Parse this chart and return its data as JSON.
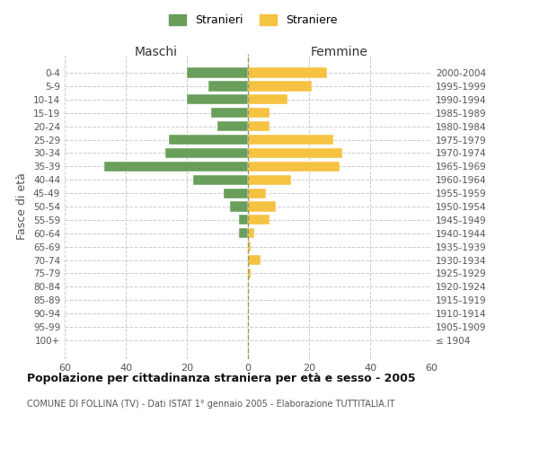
{
  "age_groups": [
    "100+",
    "95-99",
    "90-94",
    "85-89",
    "80-84",
    "75-79",
    "70-74",
    "65-69",
    "60-64",
    "55-59",
    "50-54",
    "45-49",
    "40-44",
    "35-39",
    "30-34",
    "25-29",
    "20-24",
    "15-19",
    "10-14",
    "5-9",
    "0-4"
  ],
  "birth_years": [
    "≤ 1904",
    "1905-1909",
    "1910-1914",
    "1915-1919",
    "1920-1924",
    "1925-1929",
    "1930-1934",
    "1935-1939",
    "1940-1944",
    "1945-1949",
    "1950-1954",
    "1955-1959",
    "1960-1964",
    "1965-1969",
    "1970-1974",
    "1975-1979",
    "1980-1984",
    "1985-1989",
    "1990-1994",
    "1995-1999",
    "2000-2004"
  ],
  "males": [
    0,
    0,
    0,
    0,
    0,
    0,
    0,
    0,
    3,
    3,
    6,
    8,
    18,
    47,
    27,
    26,
    10,
    12,
    20,
    13,
    20
  ],
  "females": [
    0,
    0,
    0,
    0,
    0,
    1,
    4,
    1,
    2,
    7,
    9,
    6,
    14,
    30,
    31,
    28,
    7,
    7,
    13,
    21,
    26
  ],
  "male_color": "#6a9e5b",
  "female_color": "#f5c242",
  "background_color": "#ffffff",
  "grid_color": "#cccccc",
  "title": "Popolazione per cittadinanza straniera per età e sesso - 2005",
  "subtitle": "COMUNE DI FOLLINA (TV) - Dati ISTAT 1° gennaio 2005 - Elaborazione TUTTITALIA.IT",
  "ylabel_left": "Fasce di età",
  "xlabel_left": "Maschi",
  "xlabel_right": "Femmine",
  "legend_stranieri": "Stranieri",
  "legend_straniere": "Straniere",
  "xlim": 60,
  "bar_height": 0.75
}
